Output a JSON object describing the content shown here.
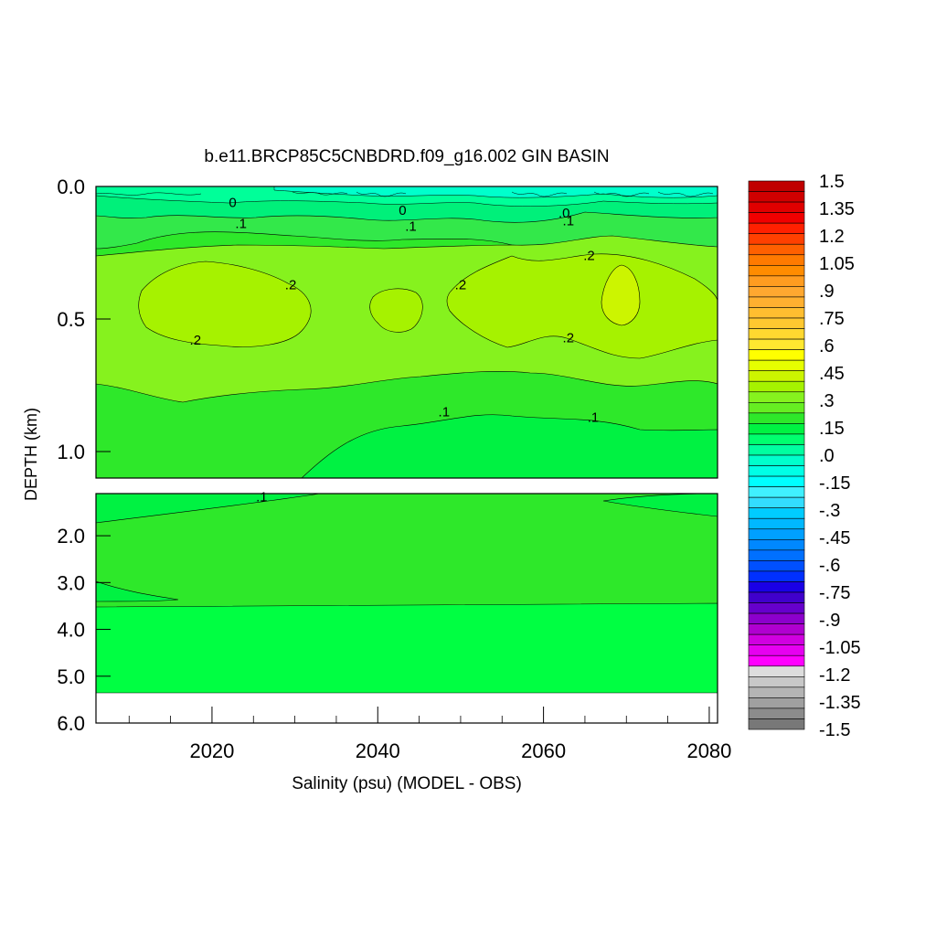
{
  "chart_data": {
    "type": "heatmap",
    "title": "b.e11.BRCP85C5CNBDRD.f09_g16.002 GIN BASIN",
    "xlabel": "Salinity (psu) (MODEL - OBS)",
    "ylabel": "DEPTH (km)",
    "xlim": [
      2006,
      2081
    ],
    "x_ticks": [
      "2020",
      "2040",
      "2060",
      "2080"
    ],
    "upper_panel": {
      "ylim": [
        0.0,
        1.1
      ],
      "y_ticks": [
        "0.0",
        "0.5",
        "1.0"
      ]
    },
    "lower_panel": {
      "ylim": [
        1.1,
        6.0
      ],
      "y_ticks": [
        "2.0",
        "3.0",
        "4.0",
        "5.0",
        "6.0"
      ]
    },
    "colorbar": {
      "range": [
        -1.5,
        1.5
      ],
      "labels": [
        "1.5",
        "1.35",
        "1.2",
        "1.05",
        ".9",
        ".75",
        ".6",
        ".45",
        ".3",
        ".15",
        ".0",
        "-.15",
        "-.3",
        "-.45",
        "-.6",
        "-.75",
        "-.9",
        "-1.05",
        "-1.2",
        "-1.35",
        "-1.5"
      ]
    },
    "contour_labels": [
      {
        "text": "0",
        "year": 2022.5,
        "depth": 0.06
      },
      {
        "text": ".1",
        "year": 2023.5,
        "depth": 0.14
      },
      {
        "text": "0",
        "year": 2043,
        "depth": 0.09
      },
      {
        "text": ".1",
        "year": 2044,
        "depth": 0.15
      },
      {
        "text": ".0",
        "year": 2062.5,
        "depth": 0.1
      },
      {
        "text": ".1",
        "year": 2063,
        "depth": 0.13
      },
      {
        "text": ".2",
        "year": 2065.5,
        "depth": 0.26
      },
      {
        "text": ".2",
        "year": 2029.5,
        "depth": 0.37
      },
      {
        "text": ".2",
        "year": 2050,
        "depth": 0.37
      },
      {
        "text": ".2",
        "year": 2018,
        "depth": 0.58
      },
      {
        "text": ".2",
        "year": 2063,
        "depth": 0.57
      },
      {
        "text": ".1",
        "year": 2048,
        "depth": 0.85
      },
      {
        "text": ".1",
        "year": 2066,
        "depth": 0.87
      },
      {
        "text": ".1",
        "year": 2026,
        "depth": 1.17
      }
    ]
  }
}
